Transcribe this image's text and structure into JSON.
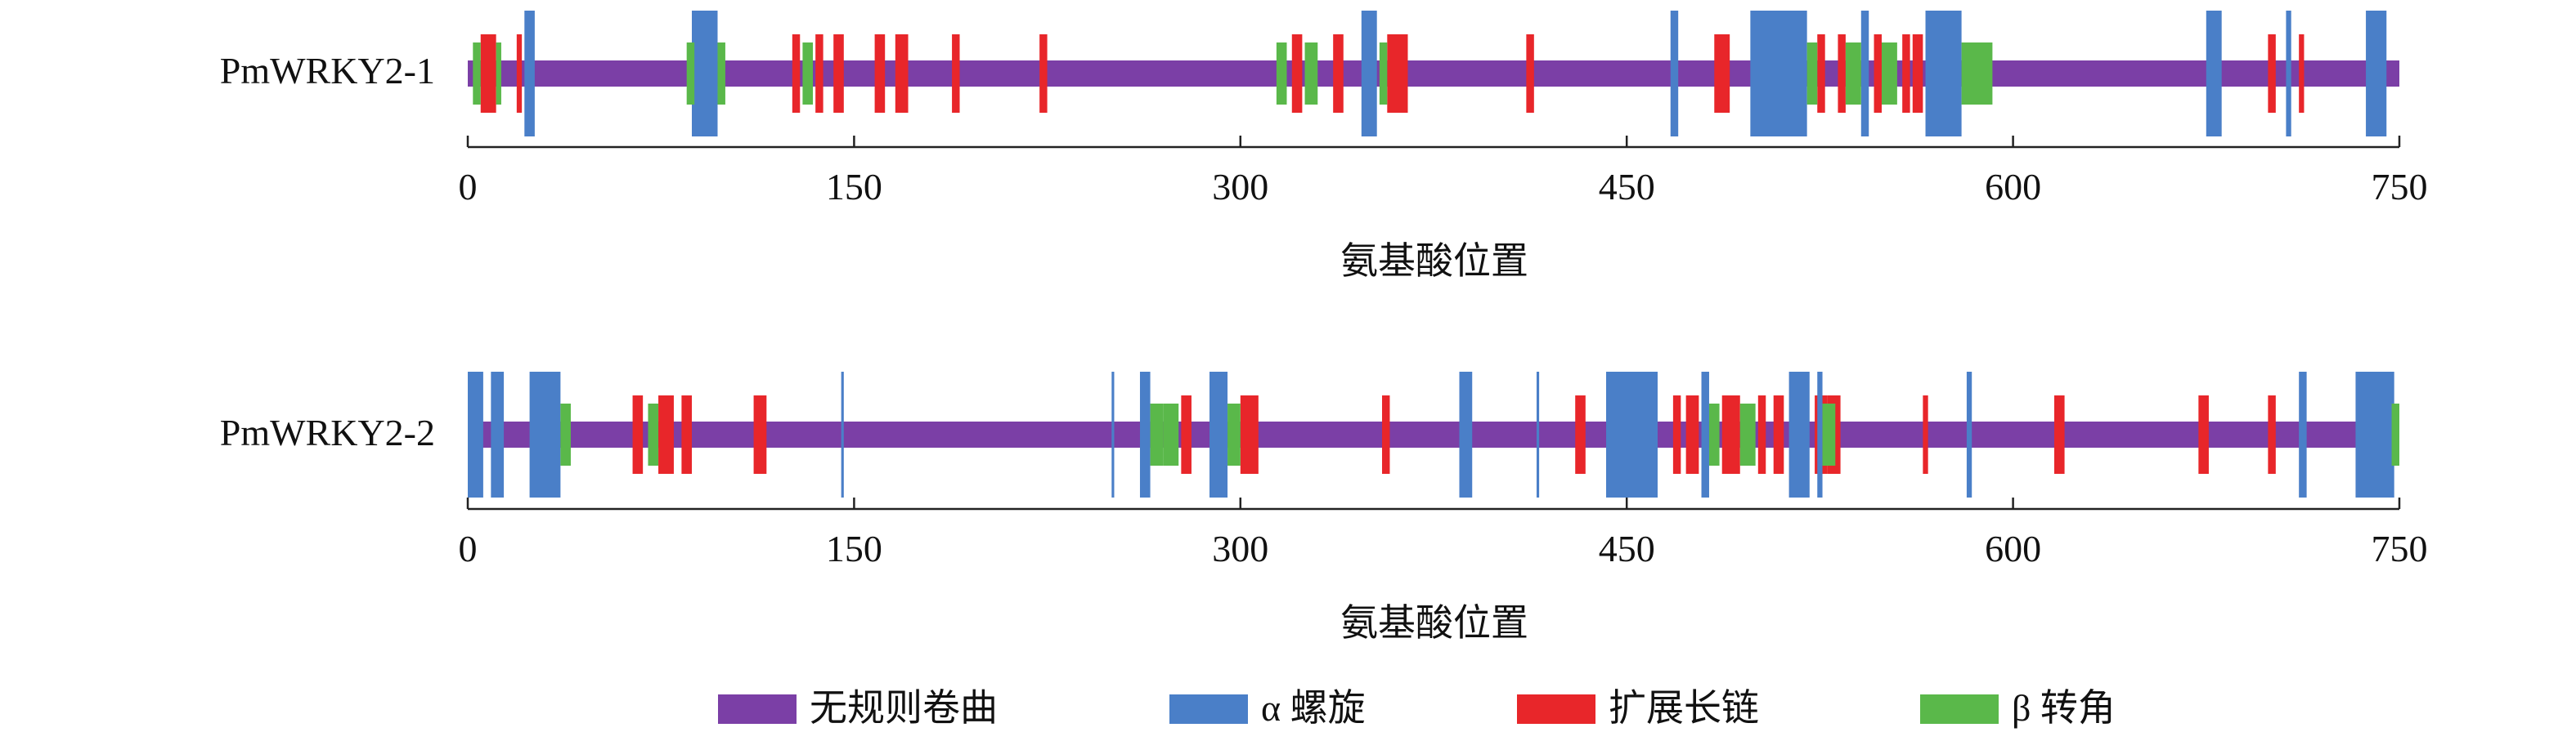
{
  "chart_data": [
    {
      "type": "bar",
      "protein": "PmWRKY2-1",
      "xlabel": "氨基酸位置",
      "xlim": [
        0,
        750
      ],
      "ticks": [
        "0",
        "150",
        "300",
        "450",
        "600",
        "750"
      ],
      "length": 750,
      "helix": [
        [
          22,
          26
        ],
        [
          87,
          97
        ],
        [
          347,
          353
        ],
        [
          467,
          470
        ],
        [
          498,
          520
        ],
        [
          541,
          544
        ],
        [
          566,
          580
        ],
        [
          675,
          681
        ],
        [
          706,
          708
        ],
        [
          737,
          745
        ]
      ],
      "strand": [
        [
          5,
          11
        ],
        [
          19,
          21
        ],
        [
          126,
          129
        ],
        [
          135,
          138
        ],
        [
          142,
          146
        ],
        [
          158,
          162
        ],
        [
          166,
          171
        ],
        [
          188,
          191
        ],
        [
          222,
          225
        ],
        [
          320,
          324
        ],
        [
          336,
          340
        ],
        [
          357,
          365
        ],
        [
          411,
          414
        ],
        [
          484,
          490
        ],
        [
          524,
          527
        ],
        [
          532,
          535
        ],
        [
          546,
          549
        ],
        [
          557,
          560
        ],
        [
          561,
          565
        ],
        [
          699,
          702
        ],
        [
          711,
          713
        ]
      ],
      "turn": [
        [
          2,
          5
        ],
        [
          11,
          13
        ],
        [
          85,
          88
        ],
        [
          97,
          100
        ],
        [
          130,
          134
        ],
        [
          314,
          318
        ],
        [
          325,
          330
        ],
        [
          354,
          357
        ],
        [
          520,
          524
        ],
        [
          535,
          541
        ],
        [
          549,
          555
        ],
        [
          580,
          592
        ]
      ]
    },
    {
      "type": "bar",
      "protein": "PmWRKY2-2",
      "xlabel": "氨基酸位置",
      "xlim": [
        0,
        750
      ],
      "ticks": [
        "0",
        "150",
        "300",
        "450",
        "600",
        "750"
      ],
      "length": 750,
      "helix": [
        [
          0,
          6
        ],
        [
          9,
          14
        ],
        [
          24,
          36
        ],
        [
          145,
          146
        ],
        [
          250,
          251
        ],
        [
          261,
          265
        ],
        [
          288,
          295
        ],
        [
          385,
          390
        ],
        [
          415,
          416
        ],
        [
          442,
          462
        ],
        [
          479,
          482
        ],
        [
          513,
          521
        ],
        [
          524,
          526
        ],
        [
          582,
          584
        ],
        [
          711,
          714
        ],
        [
          733,
          748
        ]
      ],
      "strand": [
        [
          64,
          68
        ],
        [
          74,
          80
        ],
        [
          83,
          87
        ],
        [
          111,
          116
        ],
        [
          277,
          281
        ],
        [
          300,
          307
        ],
        [
          355,
          358
        ],
        [
          430,
          434
        ],
        [
          468,
          471
        ],
        [
          473,
          478
        ],
        [
          487,
          494
        ],
        [
          501,
          504
        ],
        [
          507,
          511
        ],
        [
          523,
          528
        ],
        [
          528,
          533
        ],
        [
          565,
          567
        ],
        [
          616,
          620
        ],
        [
          672,
          676
        ],
        [
          699,
          702
        ]
      ],
      "turn": [
        [
          36,
          40
        ],
        [
          70,
          74
        ],
        [
          265,
          270
        ],
        [
          270,
          276
        ],
        [
          295,
          300
        ],
        [
          482,
          486
        ],
        [
          494,
          500
        ],
        [
          526,
          531
        ],
        [
          747,
          750
        ]
      ]
    }
  ],
  "legend": [
    {
      "label": "无规则卷曲",
      "color": "#7b3fa6"
    },
    {
      "label": "α 螺旋",
      "color": "#4a7fc8"
    },
    {
      "label": "扩展长链",
      "color": "#e8262a"
    },
    {
      "label": "β 转角",
      "color": "#5ab84a"
    }
  ]
}
